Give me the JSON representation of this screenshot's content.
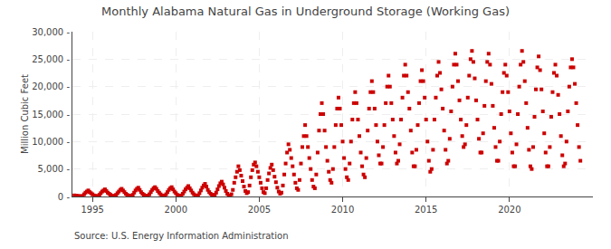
{
  "chart_data": {
    "type": "scatter",
    "title": "Monthly Alabama Natural Gas in Underground Storage (Working Gas)",
    "ylabel": "Million Cubic Feet",
    "annotations": [
      "Source: U.S. Energy Information Administration"
    ],
    "color": "#cc0000",
    "marker": "square",
    "grid": true,
    "xlim": [
      1993.8,
      2025.0
    ],
    "xticks": [
      1995,
      2000,
      2005,
      2010,
      2015,
      2020
    ],
    "ylim": [
      0,
      30000
    ],
    "yticks": [
      {
        "value": 0,
        "label": "0 -"
      },
      {
        "value": 5000,
        "label": "5,000 -"
      },
      {
        "value": 10000,
        "label": "10,000 -"
      },
      {
        "value": 15000,
        "label": "15,000 -"
      },
      {
        "value": 20000,
        "label": "20,000 -"
      },
      {
        "value": 25000,
        "label": "25,000 -"
      },
      {
        "value": 30000,
        "label": "30,000 -"
      }
    ],
    "x": [
      1993.917,
      1994.0,
      1994.083,
      1994.167,
      1994.25,
      1994.333,
      1994.417,
      1994.5,
      1994.583,
      1994.667,
      1994.75,
      1994.833,
      1994.917,
      1995.0,
      1995.083,
      1995.167,
      1995.25,
      1995.333,
      1995.417,
      1995.5,
      1995.583,
      1995.667,
      1995.75,
      1995.833,
      1995.917,
      1996.0,
      1996.083,
      1996.167,
      1996.25,
      1996.333,
      1996.417,
      1996.5,
      1996.583,
      1996.667,
      1996.75,
      1996.833,
      1996.917,
      1997.0,
      1997.083,
      1997.167,
      1997.25,
      1997.333,
      1997.417,
      1997.5,
      1997.583,
      1997.667,
      1997.75,
      1997.833,
      1997.917,
      1998.0,
      1998.083,
      1998.167,
      1998.25,
      1998.333,
      1998.417,
      1998.5,
      1998.583,
      1998.667,
      1998.75,
      1998.833,
      1998.917,
      1999.0,
      1999.083,
      1999.167,
      1999.25,
      1999.333,
      1999.417,
      1999.5,
      1999.583,
      1999.667,
      1999.75,
      1999.833,
      1999.917,
      2000.0,
      2000.083,
      2000.167,
      2000.25,
      2000.333,
      2000.417,
      2000.5,
      2000.583,
      2000.667,
      2000.75,
      2000.833,
      2000.917,
      2001.0,
      2001.083,
      2001.167,
      2001.25,
      2001.333,
      2001.417,
      2001.5,
      2001.583,
      2001.667,
      2001.75,
      2001.833,
      2001.917,
      2002.0,
      2002.083,
      2002.167,
      2002.25,
      2002.333,
      2002.417,
      2002.5,
      2002.583,
      2002.667,
      2002.75,
      2002.833,
      2002.917,
      2003.0,
      2003.083,
      2003.167,
      2003.25,
      2003.333,
      2003.417,
      2003.5,
      2003.583,
      2003.667,
      2003.75,
      2003.833,
      2003.917,
      2004.0,
      2004.083,
      2004.167,
      2004.25,
      2004.333,
      2004.417,
      2004.5,
      2004.583,
      2004.667,
      2004.75,
      2004.833,
      2004.917,
      2005.0,
      2005.083,
      2005.167,
      2005.25,
      2005.333,
      2005.417,
      2005.5,
      2005.583,
      2005.667,
      2005.75,
      2005.833,
      2005.917,
      2006.0,
      2006.083,
      2006.167,
      2006.25,
      2006.333,
      2006.417,
      2006.5,
      2006.583,
      2006.667,
      2006.75,
      2006.833,
      2006.917,
      2007.0,
      2007.083,
      2007.167,
      2007.25,
      2007.333,
      2007.417,
      2007.5,
      2007.583,
      2007.667,
      2007.75,
      2007.833,
      2007.917,
      2008.0,
      2008.083,
      2008.167,
      2008.25,
      2008.333,
      2008.417,
      2008.5,
      2008.583,
      2008.667,
      2008.75,
      2008.833,
      2008.917,
      2009.0,
      2009.083,
      2009.167,
      2009.25,
      2009.333,
      2009.417,
      2009.5,
      2009.583,
      2009.667,
      2009.75,
      2009.833,
      2009.917,
      2010.0,
      2010.083,
      2010.167,
      2010.25,
      2010.333,
      2010.417,
      2010.5,
      2010.583,
      2010.667,
      2010.75,
      2010.833,
      2010.917,
      2011.0,
      2011.083,
      2011.167,
      2011.25,
      2011.333,
      2011.417,
      2011.5,
      2011.583,
      2011.667,
      2011.75,
      2011.833,
      2011.917,
      2012.0,
      2012.083,
      2012.167,
      2012.25,
      2012.333,
      2012.417,
      2012.5,
      2012.583,
      2012.667,
      2012.75,
      2012.833,
      2012.917,
      2013.0,
      2013.083,
      2013.167,
      2013.25,
      2013.333,
      2013.417,
      2013.5,
      2013.583,
      2013.667,
      2013.75,
      2013.833,
      2013.917,
      2014.0,
      2014.083,
      2014.167,
      2014.25,
      2014.333,
      2014.417,
      2014.5,
      2014.583,
      2014.667,
      2014.75,
      2014.833,
      2014.917,
      2015.0,
      2015.083,
      2015.167,
      2015.25,
      2015.333,
      2015.417,
      2015.5,
      2015.583,
      2015.667,
      2015.75,
      2015.833,
      2015.917,
      2016.0,
      2016.083,
      2016.167,
      2016.25,
      2016.333,
      2016.417,
      2016.5,
      2016.583,
      2016.667,
      2016.75,
      2016.833,
      2016.917,
      2017.0,
      2017.083,
      2017.167,
      2017.25,
      2017.333,
      2017.417,
      2017.5,
      2017.583,
      2017.667,
      2017.75,
      2017.833,
      2017.917,
      2018.0,
      2018.083,
      2018.167,
      2018.25,
      2018.333,
      2018.417,
      2018.5,
      2018.583,
      2018.667,
      2018.75,
      2018.833,
      2018.917,
      2019.0,
      2019.083,
      2019.167,
      2019.25,
      2019.333,
      2019.417,
      2019.5,
      2019.583,
      2019.667,
      2019.75,
      2019.833,
      2019.917,
      2020.0,
      2020.083,
      2020.167,
      2020.25,
      2020.333,
      2020.417,
      2020.5,
      2020.583,
      2020.667,
      2020.75,
      2020.833,
      2020.917,
      2021.0,
      2021.083,
      2021.167,
      2021.25,
      2021.333,
      2021.417,
      2021.5,
      2021.583,
      2021.667,
      2021.75,
      2021.833,
      2021.917,
      2022.0,
      2022.083,
      2022.167,
      2022.25,
      2022.333,
      2022.417,
      2022.5,
      2022.583,
      2022.667,
      2022.75,
      2022.833,
      2022.917,
      2023.0,
      2023.083,
      2023.167,
      2023.25,
      2023.333,
      2023.417,
      2023.5,
      2023.583,
      2023.667,
      2023.75,
      2023.833,
      2023.917,
      2024.0,
      2024.083,
      2024.167,
      2024.25
    ],
    "values": [
      200,
      150,
      100,
      80,
      50,
      30,
      100,
      400,
      700,
      900,
      1100,
      800,
      600,
      400,
      200,
      100,
      50,
      80,
      300,
      600,
      900,
      1100,
      1300,
      1000,
      700,
      500,
      300,
      100,
      80,
      100,
      300,
      600,
      900,
      1200,
      1400,
      1100,
      800,
      500,
      300,
      150,
      80,
      100,
      300,
      700,
      1100,
      1400,
      1600,
      1200,
      800,
      500,
      300,
      150,
      100,
      150,
      400,
      800,
      1200,
      1500,
      1700,
      1400,
      1000,
      700,
      400,
      200,
      100,
      150,
      400,
      800,
      1200,
      1500,
      1700,
      1300,
      900,
      600,
      300,
      150,
      100,
      200,
      500,
      900,
      1300,
      1600,
      1900,
      1500,
      1100,
      700,
      400,
      200,
      100,
      200,
      600,
      1100,
      1600,
      2000,
      2300,
      1800,
      1200,
      800,
      500,
      300,
      200,
      300,
      700,
      1300,
      1900,
      2400,
      2700,
      2200,
      1600,
      1000,
      500,
      200,
      100,
      400,
      1200,
      2500,
      3500,
      4500,
      5500,
      4800,
      3800,
      2800,
      1800,
      1000,
      600,
      800,
      2000,
      3500,
      4800,
      5800,
      6200,
      5500,
      4500,
      3500,
      2500,
      1500,
      800,
      600,
      1500,
      3000,
      4200,
      5200,
      5800,
      4800,
      3600,
      2600,
      1600,
      900,
      500,
      700,
      2000,
      4000,
      6000,
      8000,
      9500,
      8500,
      7000,
      5500,
      4000,
      2500,
      1500,
      1200,
      3000,
      6000,
      9000,
      11000,
      13000,
      11000,
      9000,
      7000,
      5000,
      3000,
      1800,
      1500,
      4000,
      8000,
      12000,
      15000,
      17000,
      15000,
      12000,
      9000,
      6500,
      4500,
      3000,
      2500,
      5000,
      9000,
      13000,
      16000,
      18000,
      16000,
      13000,
      10000,
      7000,
      5000,
      3500,
      3000,
      6000,
      10000,
      14000,
      17000,
      19000,
      17000,
      14000,
      11000,
      8000,
      5500,
      4000,
      3500,
      7000,
      12000,
      16000,
      19000,
      21000,
      19000,
      16000,
      13000,
      10000,
      7500,
      6000,
      6000,
      9000,
      13000,
      17000,
      20000,
      22000,
      20000,
      17000,
      14000,
      11000,
      8000,
      6000,
      6500,
      9500,
      14000,
      18000,
      22000,
      24000,
      22000,
      19000,
      16000,
      12000,
      8000,
      5500,
      5500,
      8500,
      13000,
      17000,
      21000,
      23000,
      21000,
      18000,
      14000,
      10000,
      6500,
      4500,
      5000,
      8500,
      14000,
      18000,
      22000,
      24500,
      22500,
      19500,
      16000,
      12000,
      8500,
      6000,
      6500,
      10500,
      15500,
      20000,
      24000,
      26000,
      24000,
      21000,
      17500,
      14000,
      11000,
      9000,
      9500,
      13000,
      18000,
      22000,
      25000,
      26500,
      24500,
      21500,
      17500,
      14000,
      10500,
      8000,
      8000,
      11500,
      16500,
      21000,
      24500,
      26000,
      24000,
      20500,
      16500,
      12500,
      9000,
      6500,
      6500,
      10000,
      15000,
      19000,
      22500,
      24000,
      22000,
      19000,
      15500,
      11500,
      8000,
      5500,
      5500,
      9500,
      15000,
      20000,
      24000,
      26500,
      24500,
      21000,
      17000,
      12500,
      8500,
      5500,
      5000,
      9000,
      14500,
      19500,
      23500,
      25500,
      23000,
      19500,
      15500,
      11500,
      8000,
      5500,
      5500,
      9000,
      14500,
      19000,
      22500,
      24000,
      22000,
      18500,
      15000,
      11000,
      7500,
      5500,
      6000,
      10000,
      15500,
      20000,
      23500,
      25000,
      23500,
      20500,
      17000,
      13000,
      9000,
      6500
    ]
  }
}
